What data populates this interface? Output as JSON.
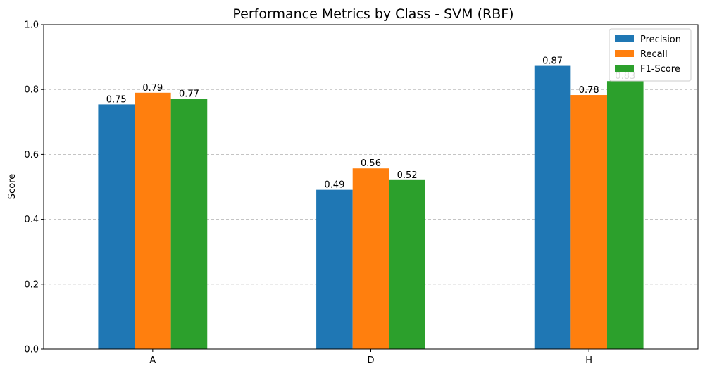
{
  "chart_data": {
    "type": "bar",
    "title": "Performance Metrics by Class - SVM (RBF)",
    "xlabel": "",
    "ylabel": "Score",
    "categories": [
      "A",
      "D",
      "H"
    ],
    "series": [
      {
        "name": "Precision",
        "color": "#1f77b4",
        "values": [
          0.754,
          0.491,
          0.873
        ]
      },
      {
        "name": "Recall",
        "color": "#ff7f0e",
        "values": [
          0.79,
          0.557,
          0.783
        ]
      },
      {
        "name": "F1-Score",
        "color": "#2ca02c",
        "values": [
          0.771,
          0.521,
          0.826
        ]
      }
    ],
    "value_labels": [
      [
        "0.75",
        "0.49",
        "0.87"
      ],
      [
        "0.79",
        "0.56",
        "0.78"
      ],
      [
        "0.77",
        "0.52",
        "0.83"
      ]
    ],
    "ylim": [
      0,
      1.0
    ],
    "yticks": [
      "0.0",
      "0.2",
      "0.4",
      "0.6",
      "0.8",
      "1.0"
    ],
    "grid": "y-dashed",
    "legend_position": "top-right"
  }
}
